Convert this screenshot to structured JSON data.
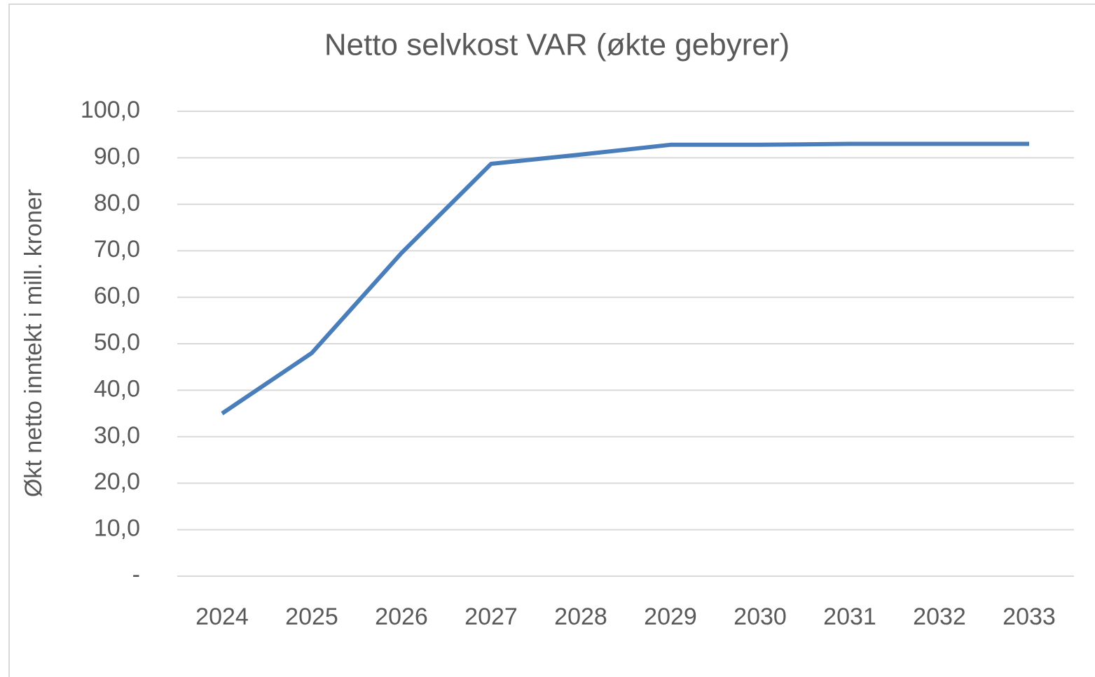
{
  "chart_data": {
    "type": "line",
    "title": "Netto selvkost VAR (økte gebyrer)",
    "y_label": "Økt netto inntekt i mill. kroner",
    "categories": [
      "2024",
      "2025",
      "2026",
      "2027",
      "2028",
      "2029",
      "2030",
      "2031",
      "2032",
      "2033"
    ],
    "series": [
      {
        "name": "Netto selvkost VAR",
        "color": "#4a7ebb",
        "values": [
          35,
          48,
          69.5,
          88.7,
          90.7,
          92.8,
          92.8,
          93,
          93,
          93
        ]
      }
    ],
    "ylim": [
      0,
      100
    ],
    "yticks": [
      {
        "value": 0,
        "label": "-"
      },
      {
        "value": 10,
        "label": "10,0"
      },
      {
        "value": 20,
        "label": "20,0"
      },
      {
        "value": 30,
        "label": "30,0"
      },
      {
        "value": 40,
        "label": "40,0"
      },
      {
        "value": 50,
        "label": "50,0"
      },
      {
        "value": 60,
        "label": "60,0"
      },
      {
        "value": 70,
        "label": "70,0"
      },
      {
        "value": 80,
        "label": "80,0"
      },
      {
        "value": 90,
        "label": "90,0"
      },
      {
        "value": 100,
        "label": "100,0"
      }
    ],
    "grid": true
  }
}
